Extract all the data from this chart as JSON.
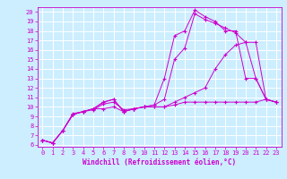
{
  "xlabel": "Windchill (Refroidissement éolien,°C)",
  "bg_color": "#cceeff",
  "grid_color": "#ffffff",
  "line_color": "#cc00cc",
  "xlim": [
    -0.5,
    23.5
  ],
  "ylim": [
    5.8,
    20.5
  ],
  "yticks": [
    6,
    7,
    8,
    9,
    10,
    11,
    12,
    13,
    14,
    15,
    16,
    17,
    18,
    19,
    20
  ],
  "xticks": [
    0,
    1,
    2,
    3,
    4,
    5,
    6,
    7,
    8,
    9,
    10,
    11,
    12,
    13,
    14,
    15,
    16,
    17,
    18,
    19,
    20,
    21,
    22,
    23
  ],
  "line1_x": [
    0,
    1,
    2,
    3,
    4,
    5,
    6,
    7,
    8,
    9,
    10,
    11,
    12,
    13,
    14,
    15,
    16,
    17,
    18,
    19,
    20,
    21,
    22,
    23
  ],
  "line1_y": [
    6.5,
    6.2,
    7.5,
    9.2,
    9.5,
    9.8,
    10.5,
    10.8,
    9.5,
    9.8,
    10.0,
    10.2,
    13.0,
    17.5,
    18.0,
    20.2,
    19.5,
    19.0,
    18.0,
    18.0,
    13.0,
    13.0,
    10.8,
    10.5
  ],
  "line2_x": [
    0,
    1,
    2,
    3,
    4,
    5,
    6,
    7,
    8,
    9,
    10,
    11,
    12,
    13,
    14,
    15,
    16,
    17,
    18,
    19,
    20,
    21,
    22,
    23
  ],
  "line2_y": [
    6.5,
    6.2,
    7.5,
    9.3,
    9.5,
    9.7,
    10.3,
    10.5,
    9.7,
    9.8,
    10.0,
    10.2,
    10.8,
    15.0,
    16.2,
    19.8,
    19.2,
    18.8,
    18.3,
    17.8,
    16.8,
    13.0,
    10.8,
    10.5
  ],
  "line3_x": [
    0,
    1,
    2,
    3,
    4,
    5,
    6,
    7,
    8,
    9,
    10,
    11,
    12,
    13,
    14,
    15,
    16,
    17,
    18,
    19,
    20,
    21,
    22,
    23
  ],
  "line3_y": [
    6.5,
    6.2,
    7.5,
    9.2,
    9.5,
    9.8,
    10.5,
    10.8,
    9.5,
    9.8,
    10.0,
    10.0,
    10.0,
    10.5,
    11.0,
    11.5,
    12.0,
    14.0,
    15.5,
    16.5,
    16.8,
    16.8,
    10.8,
    10.5
  ],
  "line4_x": [
    0,
    1,
    2,
    3,
    4,
    5,
    6,
    7,
    8,
    9,
    10,
    11,
    12,
    13,
    14,
    15,
    16,
    17,
    18,
    19,
    20,
    21,
    22,
    23
  ],
  "line4_y": [
    6.5,
    6.2,
    7.5,
    9.2,
    9.5,
    9.8,
    9.8,
    10.0,
    9.5,
    9.8,
    10.0,
    10.0,
    10.0,
    10.2,
    10.5,
    10.5,
    10.5,
    10.5,
    10.5,
    10.5,
    10.5,
    10.5,
    10.8,
    10.5
  ],
  "tick_fontsize": 5,
  "xlabel_fontsize": 5.5
}
